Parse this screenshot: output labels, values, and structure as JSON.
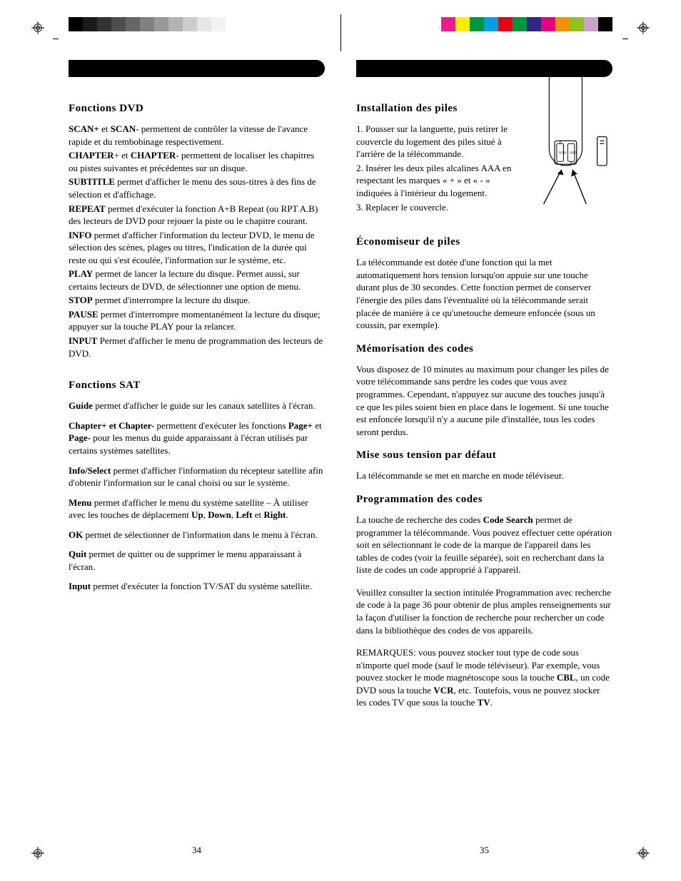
{
  "swatches_left": [
    "#000000",
    "#1a1a1a",
    "#333333",
    "#4d4d4d",
    "#666666",
    "#808080",
    "#999999",
    "#b3b3b3",
    "#cccccc",
    "#e6e6e6",
    "#f2f2f2",
    "#ffffff"
  ],
  "swatches_right": [
    "#e91e8c",
    "#ffed00",
    "#009640",
    "#00a0e3",
    "#e30613",
    "#009640",
    "#312783",
    "#e6007e",
    "#f39200",
    "#95c11f",
    "#c8a2c8",
    "#000000"
  ],
  "left": {
    "h1": "Fonctions  DVD",
    "p1_a": "SCAN+",
    "p1_b": " et ",
    "p1_c": "SCAN",
    "p1_d": "- permettent de contrôler la vitesse de l'avance rapide et du rembobinage respectivement.",
    "p2_a": "CHAPTER",
    "p2_b": "+ et ",
    "p2_c": "CHAPTER",
    "p2_d": "- permettent de localiser les chapitres ou pistes suivantes et précédentes sur un disque.",
    "p3_a": "SUBTITLE",
    "p3_b": " permet d'afficher le menu des sous-titres à des fins de sélection et d'affichage.",
    "p4_a": "REPEAT",
    "p4_b": " permet d'exécuter la fonction A+B Repeat (ou RPT A.B) des lecteurs de DVD pour rejouer la piste ou le chapitre courant.",
    "p5_a": "INFO",
    "p5_b": " permet d'afficher l'information du lecteur DVD, le menu de sélection des scènes, plages ou titres, l'indication de la durée qui reste ou qui s'est écoulée, l'information sur le système,  etc.",
    "p6_a": "PLAY",
    "p6_b": " permet de lancer la lecture du disque. Permet aussi, sur certains lecteurs de DVD, de sélectionner une option de menu.",
    "p7_a": "STOP",
    "p7_b": " permet d'interrompre la lecture du disque.",
    "p8_a": "PAUSE",
    "p8_b": " permet d'interrompre momentanément la lecture du disque; appuyer sur la touche PLAY pour la relancer.",
    "p9_a": "INPUT",
    "p9_b": " Permet d'afficher le menu de programmation des lecteurs de DVD.",
    "h2": "Fonctions SAT",
    "s1_a": "Guide",
    "s1_b": " permet d'afficher le guide sur les canaux satellites à l'écran.",
    "s2_a": "Chapter+ et Chapter-",
    "s2_b": " permettent d'exécuter les fonctions ",
    "s2_c": "Page+",
    "s2_d": " et ",
    "s2_e": "Page-",
    "s2_f": " pour les menus du guide apparaissant à l'écran utilisés par certains systèmes satellites.",
    "s3_a": "Info/Select",
    "s3_b": " permet d'afficher l'information du récepteur satellite afin d'obtenir l'information sur le canal choisi ou sur le système.",
    "s4_a": "Menu",
    "s4_b": " permet d'afficher le menu du système satellite – À utiliser avec les touches de déplacement ",
    "s4_c": "Up",
    "s4_d": ", ",
    "s4_e": "Down",
    "s4_f": ", ",
    "s4_g": "Left",
    "s4_h": " et ",
    "s4_i": "Right",
    "s4_j": ".",
    "s5_a": "OK",
    "s5_b": " permet de sélectionner de l'information dans le menu à l'écran.",
    "s6_a": "Quit",
    "s6_b": " permet de quitter ou de supprimer le menu apparaissant à l'écran.",
    "s7_a": "Input",
    "s7_b": " permet d'exécuter la fonction TV/SAT du système satellite.",
    "pagenum": "34"
  },
  "right": {
    "h1": "Installation des piles",
    "i1": "1. Pousser sur la languette, puis retirer le couvercle du logement des piles situé à l'arrière de la télécommande.",
    "i2": "2. Insérer les deux piles alcalines AAA en respectant les marques « + » et « - » indiquées à l'intérieur du logement.",
    "i3": "3. Replacer le couvercle.",
    "h2": "Économiseur de piles",
    "e1": "La télécommande est dotée d'une fonction qui la met automatiquement hors tension lorsqu'on appuie sur une touche durant plus de 30 secondes. Cette fonction permet de conserver l'énergie des piles dans l'éventualité où la télécommande serait placée de manière à ce qu'unetouche demeure enfoncée (sous un coussin, par exemple).",
    "h3": "Mémorisation des codes",
    "m1": "Vous disposez de 10 minutes au maximum pour changer les piles de votre télécommande sans perdre les codes que vous avez programmes.  Cependant, n'appuyez sur aucune des touches jusqu'à ce que les piles soient bien en place dans le logement.  Si une touche est enfoncée lorsqu'il n'y a aucune pile d'installée, tous les codes seront perdus.",
    "h4": "Mise sous tension par défaut",
    "t1": "La télécommande se met en marche en mode téléviseur.",
    "h5": "Programmation des codes",
    "c1_a": "La touche de recherche des codes ",
    "c1_b": "Code Search",
    "c1_c": " permet de programmer la télécommande. Vous pouvez effectuer cette opération soit en sélectionnant le code de la marque de l'appareil dans les tables de codes (voir la feuille séparée), soit en recherchant dans la liste de codes un code approprié à l'appareil.",
    "c2": "Veuillez consulter la section intitulée Programmation avec recherche de code à la page 36 pour obtenir de plus amples renseignements sur la façon d'utiliser la fonction de recherche pour rechercher un code dans la bibliothèque des codes de vos appareils.",
    "c3_a": "REMARQUES: vous pouvez stocker tout type de code sous n'importe quel mode (sauf le mode téléviseur). Par exemple, vous pouvez stocker le mode magnétoscope sous la touche ",
    "c3_b": "CBL",
    "c3_c": ", un code DVD sous la touche ",
    "c3_d": "VCR",
    "c3_e": ", etc. Toutefois, vous ne pouvez stocker les codes TV que sous la touche ",
    "c3_f": "TV",
    "c3_g": ".",
    "pagenum": "35"
  }
}
